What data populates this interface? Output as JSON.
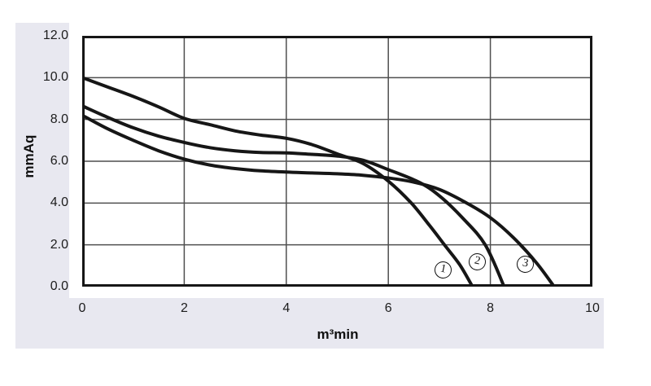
{
  "colors": {
    "panel_bg": "#e8e8f0",
    "plot_bg": "#ffffff",
    "frame": "#161616",
    "grid": "#4f4f4f",
    "curve": "#161616",
    "text": "#1c1c1c"
  },
  "chart_data": {
    "type": "line",
    "title": "",
    "xlabel": "m³min",
    "ylabel": "mmAq",
    "xlim": [
      0,
      10
    ],
    "ylim": [
      0,
      12
    ],
    "grid": true,
    "xticks": [
      0,
      2,
      4,
      6,
      8,
      10
    ],
    "xtick_labels": [
      "0",
      "2",
      "4",
      "6",
      "8",
      "10"
    ],
    "yticks": [
      0,
      2,
      4,
      6,
      8,
      10,
      12
    ],
    "ytick_labels": [
      "0.0",
      "2.0",
      "4.0",
      "6.0",
      "8.0",
      "10.0",
      "12.0"
    ],
    "series": [
      {
        "name": "1",
        "label": "1",
        "label_x": 7.07,
        "label_y": 0.78,
        "points": [
          [
            0,
            10.0
          ],
          [
            0.5,
            9.55
          ],
          [
            1,
            9.1
          ],
          [
            1.5,
            8.6
          ],
          [
            2,
            8.05
          ],
          [
            2.5,
            7.75
          ],
          [
            3,
            7.45
          ],
          [
            3.5,
            7.25
          ],
          [
            4,
            7.1
          ],
          [
            4.5,
            6.8
          ],
          [
            5,
            6.35
          ],
          [
            5.5,
            5.9
          ],
          [
            6,
            5.05
          ],
          [
            6.45,
            4.0
          ],
          [
            6.8,
            2.95
          ],
          [
            7.1,
            2.0
          ],
          [
            7.4,
            1.05
          ],
          [
            7.65,
            0
          ]
        ]
      },
      {
        "name": "2",
        "label": "2",
        "label_x": 7.74,
        "label_y": 1.17,
        "points": [
          [
            0,
            8.65
          ],
          [
            0.5,
            8.1
          ],
          [
            1,
            7.6
          ],
          [
            1.5,
            7.2
          ],
          [
            2,
            6.9
          ],
          [
            2.5,
            6.65
          ],
          [
            3,
            6.5
          ],
          [
            3.5,
            6.42
          ],
          [
            4,
            6.4
          ],
          [
            4.5,
            6.33
          ],
          [
            5,
            6.25
          ],
          [
            5.5,
            6.05
          ],
          [
            6,
            5.6
          ],
          [
            6.6,
            5.0
          ],
          [
            7,
            4.35
          ],
          [
            7.45,
            3.3
          ],
          [
            7.9,
            2.0
          ],
          [
            8.27,
            0
          ]
        ]
      },
      {
        "name": "3",
        "label": "3",
        "label_x": 8.69,
        "label_y": 1.09,
        "points": [
          [
            0,
            8.2
          ],
          [
            0.5,
            7.55
          ],
          [
            1,
            7.0
          ],
          [
            1.5,
            6.5
          ],
          [
            2,
            6.1
          ],
          [
            2.5,
            5.82
          ],
          [
            3,
            5.65
          ],
          [
            3.5,
            5.54
          ],
          [
            4,
            5.48
          ],
          [
            4.5,
            5.44
          ],
          [
            5,
            5.4
          ],
          [
            5.5,
            5.33
          ],
          [
            6,
            5.2
          ],
          [
            6.5,
            5.0
          ],
          [
            7,
            4.65
          ],
          [
            7.5,
            4.05
          ],
          [
            8,
            3.3
          ],
          [
            8.45,
            2.35
          ],
          [
            8.9,
            1.15
          ],
          [
            9.25,
            0
          ]
        ]
      }
    ]
  }
}
